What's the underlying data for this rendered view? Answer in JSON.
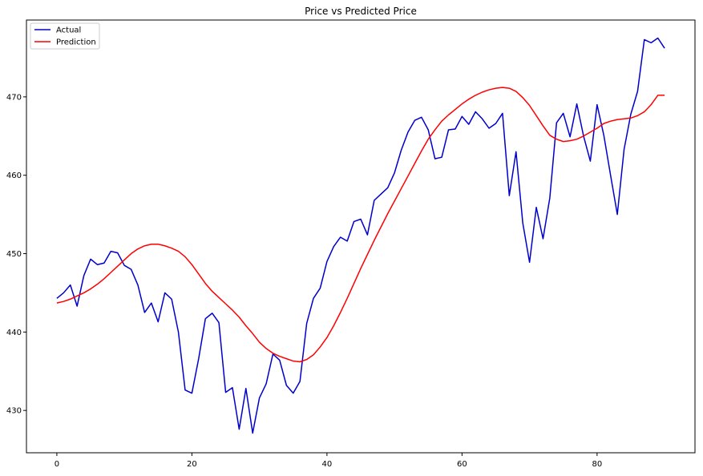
{
  "chart_data": {
    "type": "line",
    "title": "Price vs Predicted Price",
    "xlabel": "",
    "ylabel": "",
    "xlim": [
      -4.5,
      94.5
    ],
    "ylim": [
      424.6,
      479.8
    ],
    "xticks": [
      0,
      20,
      40,
      60,
      80
    ],
    "yticks": [
      430,
      440,
      450,
      460,
      470
    ],
    "grid": false,
    "legend_position": "top-left",
    "series": [
      {
        "name": "Actual",
        "color": "#0000cd",
        "x": [
          0,
          1,
          2,
          3,
          4,
          5,
          6,
          7,
          8,
          9,
          10,
          11,
          12,
          13,
          14,
          15,
          16,
          17,
          18,
          19,
          20,
          21,
          22,
          23,
          24,
          25,
          26,
          27,
          28,
          29,
          30,
          31,
          32,
          33,
          34,
          35,
          36,
          37,
          38,
          39,
          40,
          41,
          42,
          43,
          44,
          45,
          46,
          47,
          48,
          49,
          50,
          51,
          52,
          53,
          54,
          55,
          56,
          57,
          58,
          59,
          60,
          61,
          62,
          63,
          64,
          65,
          66,
          67,
          68,
          69,
          70,
          71,
          72,
          73,
          74,
          75,
          76,
          77,
          78,
          79,
          80,
          81,
          82,
          83,
          84,
          85,
          86,
          87,
          88,
          89,
          90
        ],
        "values": [
          444.3,
          445.0,
          446.0,
          443.3,
          447.2,
          449.3,
          448.6,
          448.8,
          450.3,
          450.1,
          448.5,
          448.0,
          446.0,
          442.5,
          443.7,
          441.3,
          445.0,
          444.2,
          440.0,
          432.6,
          432.2,
          436.6,
          441.7,
          442.4,
          441.2,
          432.3,
          432.9,
          427.6,
          432.8,
          427.1,
          431.6,
          433.4,
          437.2,
          436.4,
          433.2,
          432.2,
          433.7,
          441.1,
          444.3,
          445.6,
          449.0,
          450.9,
          452.1,
          451.6,
          454.1,
          454.4,
          452.4,
          456.8,
          457.6,
          458.4,
          460.3,
          463.2,
          465.5,
          467.0,
          467.4,
          465.8,
          462.1,
          462.3,
          465.8,
          465.9,
          467.5,
          466.5,
          468.1,
          467.2,
          466.0,
          466.6,
          467.9,
          457.4,
          463.0,
          453.9,
          448.9,
          455.9,
          451.9,
          457.1,
          466.7,
          467.9,
          464.9,
          469.1,
          465.0,
          461.8,
          469.0,
          465.1,
          460.0,
          455.0,
          463.3,
          467.8,
          470.7,
          477.3,
          476.9,
          477.5,
          476.2
        ]
      },
      {
        "name": "Prediction",
        "color": "#ff0000",
        "x": [
          0,
          1,
          2,
          3,
          4,
          5,
          6,
          7,
          8,
          9,
          10,
          11,
          12,
          13,
          14,
          15,
          16,
          17,
          18,
          19,
          20,
          21,
          22,
          23,
          24,
          25,
          26,
          27,
          28,
          29,
          30,
          31,
          32,
          33,
          34,
          35,
          36,
          37,
          38,
          39,
          40,
          41,
          42,
          43,
          44,
          45,
          46,
          47,
          48,
          49,
          50,
          51,
          52,
          53,
          54,
          55,
          56,
          57,
          58,
          59,
          60,
          61,
          62,
          63,
          64,
          65,
          66,
          67,
          68,
          69,
          70,
          71,
          72,
          73,
          74,
          75,
          76,
          77,
          78,
          79,
          80,
          81,
          82,
          83,
          84,
          85,
          86,
          87,
          88,
          89,
          90
        ],
        "values": [
          443.7,
          443.9,
          444.2,
          444.6,
          445.0,
          445.5,
          446.1,
          446.8,
          447.6,
          448.4,
          449.2,
          450.0,
          450.6,
          451.0,
          451.2,
          451.2,
          451.0,
          450.7,
          450.3,
          449.6,
          448.6,
          447.4,
          446.2,
          445.2,
          444.4,
          443.6,
          442.8,
          441.9,
          440.8,
          439.8,
          438.7,
          437.9,
          437.3,
          436.9,
          436.6,
          436.3,
          436.2,
          436.5,
          437.1,
          438.1,
          439.3,
          440.8,
          442.5,
          444.3,
          446.2,
          448.1,
          449.9,
          451.7,
          453.4,
          455.1,
          456.7,
          458.3,
          459.9,
          461.5,
          463.1,
          464.6,
          465.8,
          466.9,
          467.7,
          468.4,
          469.1,
          469.7,
          470.2,
          470.6,
          470.9,
          471.1,
          471.2,
          471.1,
          470.7,
          469.9,
          468.9,
          467.6,
          466.3,
          465.1,
          464.6,
          464.3,
          464.4,
          464.6,
          465.0,
          465.5,
          466.0,
          466.6,
          466.9,
          467.1,
          467.2,
          467.3,
          467.6,
          468.1,
          469.0,
          470.2,
          470.2
        ]
      }
    ]
  }
}
